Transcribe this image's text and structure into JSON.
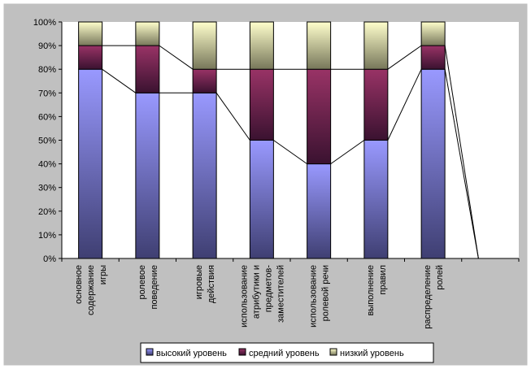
{
  "chart_data": {
    "type": "bar",
    "stacked": "percent",
    "categories": [
      [
        "основное",
        "содержание",
        "игры"
      ],
      [
        "ролевое",
        "поведение"
      ],
      [
        "игровые",
        "действия"
      ],
      [
        "использование",
        "атрибутики и",
        "предметов-",
        "заместителей"
      ],
      [
        "использование",
        "ролевой речи"
      ],
      [
        "выполнение",
        "правил"
      ],
      [
        "распределение",
        "ролей"
      ],
      [
        ""
      ]
    ],
    "series": [
      {
        "name": "высокий уровень",
        "values": [
          80,
          70,
          70,
          50,
          40,
          50,
          80,
          0
        ],
        "color_top": "#9999ff",
        "color_bottom": "#3f3f72"
      },
      {
        "name": "средний уровень",
        "values": [
          10,
          20,
          10,
          30,
          40,
          30,
          10,
          0
        ],
        "color_top": "#993366",
        "color_bottom": "#3a1230"
      },
      {
        "name": "низкий уровень",
        "values": [
          10,
          10,
          20,
          20,
          20,
          20,
          10,
          0
        ],
        "color_top": "#ffffcc",
        "color_bottom": "#77775a"
      }
    ],
    "yticks": [
      "0%",
      "10%",
      "20%",
      "30%",
      "40%",
      "50%",
      "60%",
      "70%",
      "80%",
      "90%",
      "100%"
    ],
    "ylim": [
      0,
      100
    ],
    "series_lines": true,
    "grid": false,
    "legend": "bottom",
    "title": "",
    "xlabel": "",
    "ylabel": ""
  }
}
